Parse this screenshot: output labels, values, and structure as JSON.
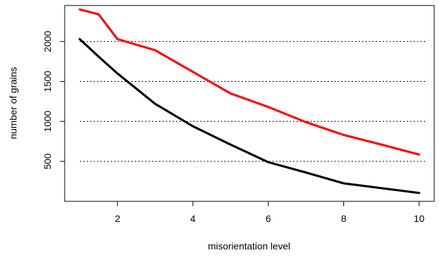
{
  "chart_data": {
    "type": "line",
    "title": "",
    "xlabel": "misorientation level",
    "ylabel": "number of grains",
    "xlim": [
      0.6,
      10.4
    ],
    "ylim": [
      0,
      2450
    ],
    "xticks": [
      2,
      4,
      6,
      8,
      10
    ],
    "yticks": [
      500,
      1000,
      1500,
      2000
    ],
    "grid": "horizontal dotted lines at y ticks",
    "legend": "none",
    "series": [
      {
        "color": "#ff0000",
        "x": [
          1,
          1.5,
          2,
          3,
          4,
          5,
          6,
          7,
          8,
          9,
          10
        ],
        "y": [
          2400,
          2340,
          2030,
          1890,
          1620,
          1350,
          1180,
          990,
          830,
          710,
          585
        ]
      },
      {
        "color": "#000000",
        "x": [
          1,
          1.5,
          2,
          3,
          4,
          5,
          6,
          7,
          8,
          9,
          10
        ],
        "y": [
          2030,
          1810,
          1600,
          1220,
          940,
          710,
          490,
          360,
          225,
          165,
          105
        ]
      }
    ]
  }
}
